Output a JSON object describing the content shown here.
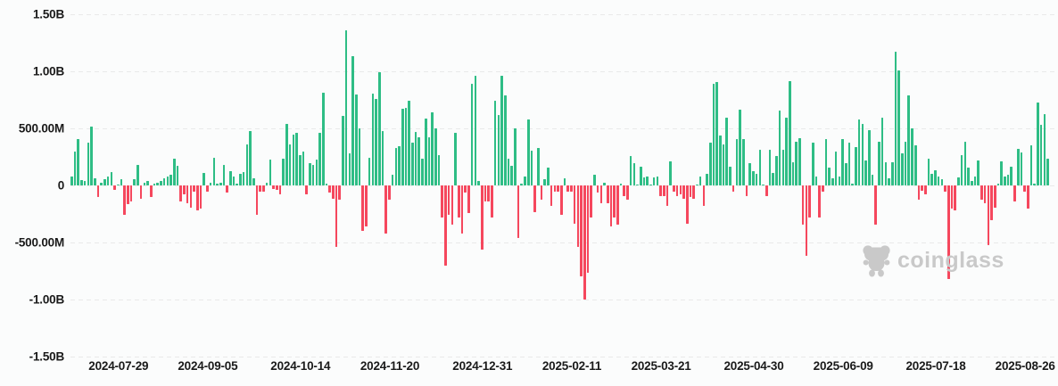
{
  "watermark": {
    "text": "coinglass"
  },
  "colors": {
    "positive": "#2ebd85",
    "negative": "#f5475d",
    "background": "#fbfcfc",
    "gridline": "#e9e9e9",
    "axis_text": "#1a1a1a",
    "watermark": "#c9c9c9"
  },
  "chart_data": {
    "type": "bar",
    "title": "",
    "legend": null,
    "grid": "dashed-horizontal",
    "y_axis": {
      "tick_labels": [
        "1.50B",
        "1.00B",
        "500.00M",
        "0",
        "-500.00M",
        "-1.00B",
        "-1.50B"
      ],
      "tick_values_millions": [
        1500,
        1000,
        500,
        0,
        -500,
        -1000,
        -1500
      ],
      "range_millions": [
        -1500,
        1500
      ]
    },
    "x_axis": {
      "tick_labels": [
        "2024-07-29",
        "2024-09-05",
        "2024-10-14",
        "2024-11-20",
        "2024-12-31",
        "2025-02-11",
        "2025-03-21",
        "2025-04-30",
        "2025-06-09",
        "2025-07-18",
        "2025-08-26"
      ],
      "tick_bar_indices": [
        14,
        41,
        69,
        96,
        124,
        151,
        178,
        206,
        233,
        261,
        288
      ]
    },
    "values_millions": [
      75,
      295,
      410,
      50,
      40,
      372,
      518,
      64,
      -103,
      26,
      51,
      77,
      115,
      -38,
      5,
      51,
      -256,
      -167,
      -141,
      51,
      180,
      -115,
      26,
      38,
      -103,
      13,
      26,
      38,
      64,
      77,
      90,
      238,
      172,
      -141,
      -77,
      -154,
      -192,
      -51,
      -218,
      -205,
      108,
      -51,
      26,
      244,
      13,
      26,
      180,
      -64,
      128,
      82,
      13,
      103,
      115,
      359,
      479,
      64,
      -256,
      -51,
      -51,
      26,
      223,
      -31,
      -38,
      -77,
      236,
      538,
      359,
      449,
      462,
      262,
      295,
      -77,
      192,
      180,
      223,
      462,
      810,
      13,
      -64,
      -115,
      -538,
      -128,
      608,
      1360,
      282,
      1130,
      795,
      500,
      -397,
      -359,
      244,
      805,
      760,
      990,
      475,
      -423,
      -128,
      92,
      330,
      345,
      672,
      680,
      745,
      375,
      465,
      423,
      231,
      585,
      423,
      641,
      500,
      269,
      -282,
      -705,
      -256,
      -346,
      462,
      -282,
      -423,
      -64,
      -244,
      892,
      962,
      38,
      -564,
      -141,
      -141,
      -282,
      744,
      615,
      962,
      790,
      238,
      174,
      500,
      -462,
      18,
      82,
      577,
      303,
      -231,
      326,
      -128,
      56,
      159,
      -180,
      -51,
      -51,
      -256,
      64,
      -51,
      -51,
      -333,
      -538,
      -795,
      -1000,
      -769,
      -282,
      90,
      -64,
      -154,
      20,
      -154,
      -359,
      -282,
      -346,
      13,
      -90,
      -128,
      256,
      192,
      8,
      162,
      69,
      77,
      5,
      69,
      82,
      -90,
      -90,
      -180,
      210,
      -51,
      -90,
      -77,
      -115,
      -333,
      -103,
      -115,
      5,
      77,
      -180,
      103,
      372,
      892,
      903,
      436,
      359,
      590,
      167,
      -51,
      410,
      667,
      410,
      -90,
      192,
      128,
      103,
      313,
      5,
      -90,
      313,
      108,
      256,
      654,
      313,
      595,
      918,
      205,
      380,
      415,
      -346,
      -615,
      -282,
      372,
      77,
      -282,
      -51,
      410,
      154,
      64,
      295,
      77,
      410,
      192,
      372,
      13,
      333,
      577,
      538,
      218,
      487,
      90,
      -346,
      385,
      590,
      205,
      64,
      205,
      1170,
      1010,
      282,
      385,
      790,
      500,
      351,
      -128,
      -46,
      -77,
      231,
      103,
      133,
      77,
      51,
      -51,
      -820,
      -205,
      -218,
      72,
      262,
      385,
      159,
      38,
      77,
      218,
      -128,
      -154,
      -526,
      -308,
      -192,
      13,
      210,
      77,
      90,
      167,
      -141,
      320,
      287,
      -51,
      -205,
      354,
      13,
      723,
      533,
      623,
      238
    ]
  }
}
